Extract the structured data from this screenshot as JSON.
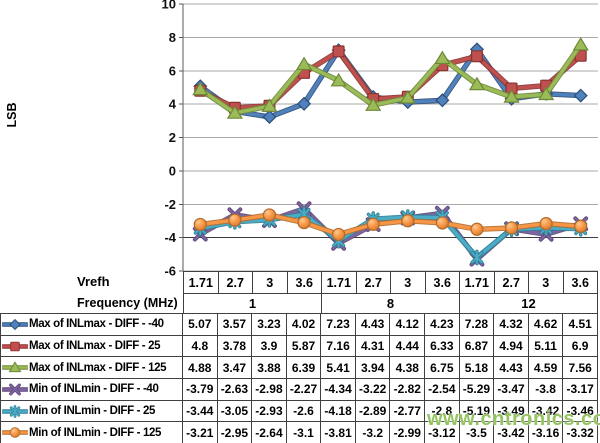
{
  "y_axis_title": "LSB",
  "x_axis": {
    "row1_label": "Vrefh",
    "row2_label": "Frequency (MHz)"
  },
  "watermark": "www.cntronics.com",
  "chart_data": {
    "type": "line",
    "title": "",
    "xlabel": "Vrefh / Frequency (MHz)",
    "ylabel": "LSB",
    "ylim": [
      -6,
      10
    ],
    "ytick_step": 2,
    "grid": true,
    "legend_position": "data-table-left",
    "categories": [
      "1.71",
      "2.7",
      "3",
      "3.6",
      "1.71",
      "2.7",
      "3",
      "3.6",
      "1.71",
      "2.7",
      "3",
      "3.6"
    ],
    "groups": [
      {
        "label": "1",
        "span": 4
      },
      {
        "label": "8",
        "span": 4
      },
      {
        "label": "12",
        "span": 4
      }
    ],
    "series": [
      {
        "name": "Max of INLmax - DIFF - -40",
        "marker": "diamond",
        "color": "#4F81BD",
        "edge": "#2c4d76",
        "values": [
          5.07,
          3.57,
          3.23,
          4.02,
          7.23,
          4.43,
          4.12,
          4.23,
          7.28,
          4.32,
          4.62,
          4.51
        ]
      },
      {
        "name": "Max of INLmax - DIFF - 25",
        "marker": "square",
        "color": "#C0504D",
        "edge": "#8a3230",
        "values": [
          4.8,
          3.78,
          3.9,
          5.87,
          7.16,
          4.31,
          4.44,
          6.33,
          6.87,
          4.94,
          5.11,
          6.9
        ]
      },
      {
        "name": "Max of INLmax - DIFF - 125",
        "marker": "triangle",
        "color": "#9BBB59",
        "edge": "#6d8836",
        "values": [
          4.88,
          3.47,
          3.88,
          6.39,
          5.41,
          3.94,
          4.38,
          6.75,
          5.18,
          4.43,
          4.59,
          7.56
        ]
      },
      {
        "name": "Min of INLmin - DIFF - -40",
        "marker": "x",
        "color": "#8064A2",
        "edge": "#5c4776",
        "values": [
          -3.79,
          -2.63,
          -2.98,
          -2.27,
          -4.34,
          -3.22,
          -2.82,
          -2.54,
          -5.29,
          -3.47,
          -3.8,
          -3.17
        ]
      },
      {
        "name": "Min of INLmin - DIFF - 25",
        "marker": "asterisk",
        "color": "#4BACC6",
        "edge": "#2f7f96",
        "values": [
          -3.44,
          -3.05,
          -2.93,
          -2.6,
          -4.18,
          -2.89,
          -2.77,
          -2.8,
          -5.19,
          -3.49,
          -3.42,
          -3.46
        ]
      },
      {
        "name": "Min of INLmin - DIFF - 125",
        "marker": "circle",
        "color": "#F79646",
        "edge": "#b16a2b",
        "values": [
          -3.21,
          -2.95,
          -2.64,
          -3.1,
          -3.81,
          -3.2,
          -2.99,
          -3.12,
          -3.5,
          -3.42,
          -3.16,
          -3.32
        ]
      }
    ]
  }
}
